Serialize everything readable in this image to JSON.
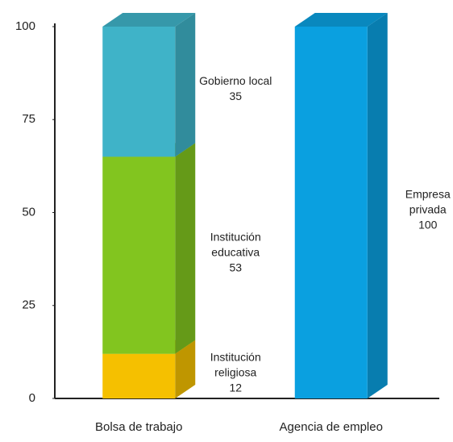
{
  "chart_data": {
    "type": "bar",
    "stacked": true,
    "categories": [
      "Bolsa de trabajo",
      "Agencia de empleo"
    ],
    "series": [
      {
        "name": "Institución religiosa",
        "color": "#f5c000",
        "values": [
          12,
          null
        ]
      },
      {
        "name": "Institución educativa",
        "color": "#82c51f",
        "values": [
          53,
          null
        ]
      },
      {
        "name": "Gobierno local",
        "color": "#3fb3c8",
        "values": [
          35,
          null
        ]
      },
      {
        "name": "Empresa privada",
        "color": "#0aa0e0",
        "values": [
          null,
          100
        ]
      }
    ],
    "ylim": [
      0,
      100
    ],
    "yticks": [
      0,
      25,
      50,
      75,
      100
    ]
  }
}
